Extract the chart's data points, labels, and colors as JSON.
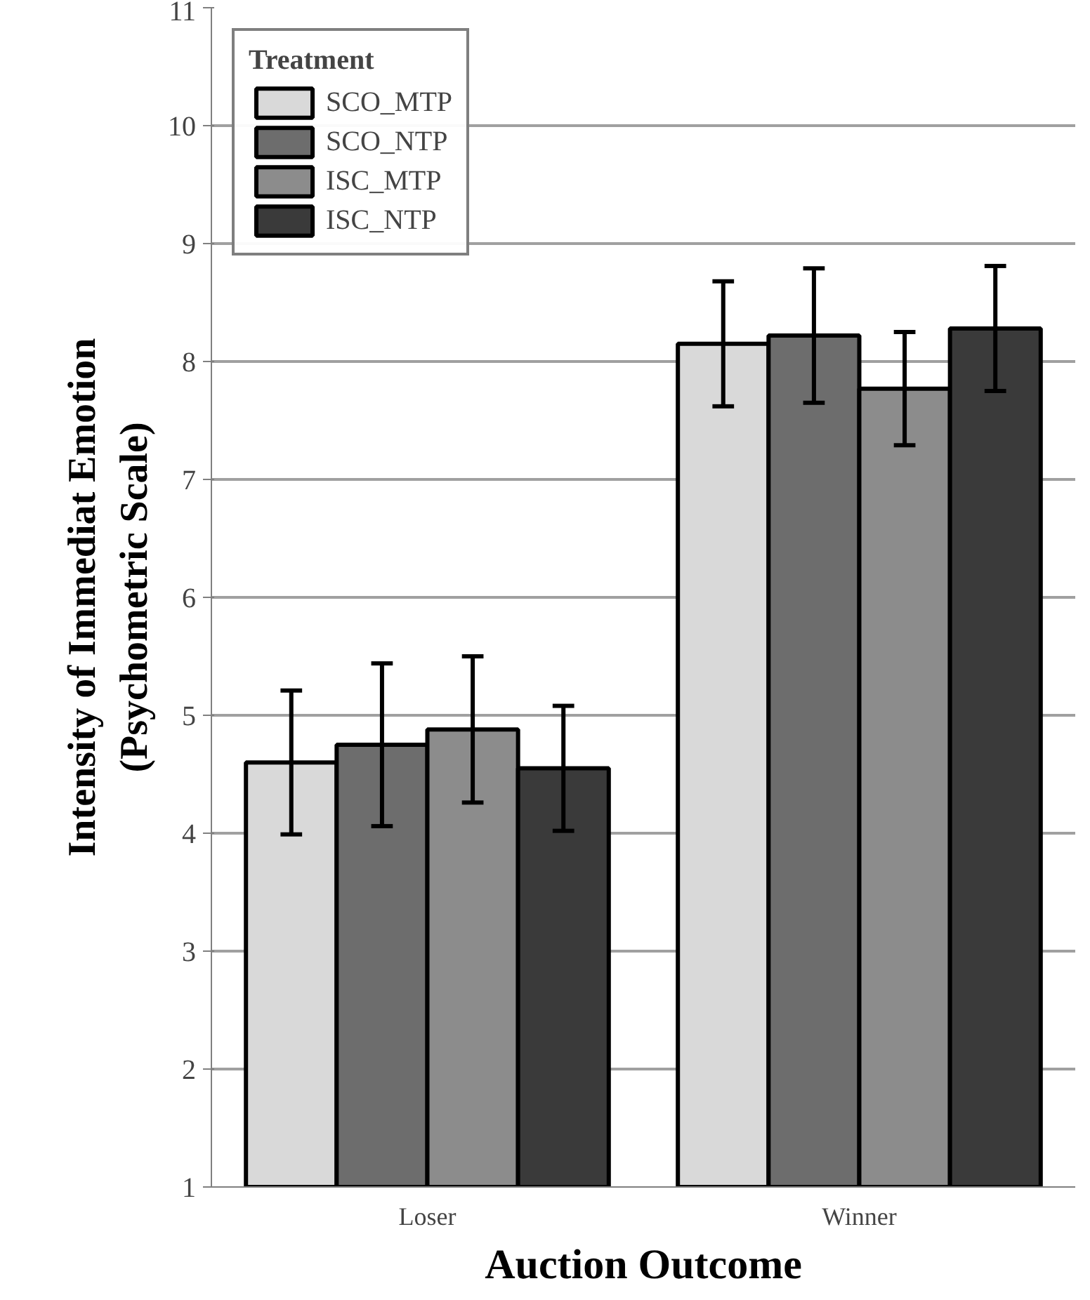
{
  "chart_data": {
    "type": "bar",
    "xlabel": "Auction Outcome",
    "ylabel": "Intensity of Immediat Emotion\n(Psychometric Scale)",
    "legend_title": "Treatment",
    "categories": [
      "Loser",
      "Winner"
    ],
    "series": [
      {
        "name": "SCO_MTP",
        "color": "#d9d9d9",
        "values": [
          4.6,
          8.15
        ],
        "errors": [
          0.61,
          0.53
        ]
      },
      {
        "name": "SCO_NTP",
        "color": "#6d6d6d",
        "values": [
          4.75,
          8.22
        ],
        "errors": [
          0.69,
          0.57
        ]
      },
      {
        "name": "ISC_MTP",
        "color": "#8c8c8c",
        "values": [
          4.88,
          7.77
        ],
        "errors": [
          0.62,
          0.48
        ]
      },
      {
        "name": "ISC_NTP",
        "color": "#3a3a3a",
        "values": [
          4.55,
          8.28
        ],
        "errors": [
          0.53,
          0.53
        ]
      }
    ],
    "ylim": [
      1,
      11
    ],
    "yticks": [
      1,
      2,
      3,
      4,
      5,
      6,
      7,
      8,
      9,
      10,
      11
    ],
    "grid": "y",
    "legend": "top left"
  }
}
